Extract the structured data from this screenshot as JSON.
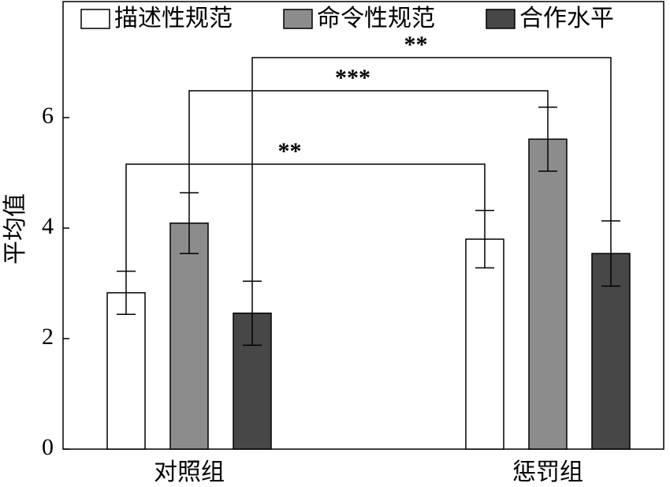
{
  "chart_data": {
    "type": "bar",
    "ylabel": "平均值",
    "categories": [
      "对照组",
      "惩罚组"
    ],
    "series": [
      {
        "name": "描述性规范",
        "color": "#ffffff",
        "values": [
          2.83,
          3.8
        ],
        "errors": [
          0.39,
          0.52
        ]
      },
      {
        "name": "命令性规范",
        "color": "#8c8c8c",
        "values": [
          4.09,
          5.61
        ],
        "errors": [
          0.55,
          0.58
        ]
      },
      {
        "name": "合作水平",
        "color": "#474747",
        "values": [
          2.46,
          3.54
        ],
        "errors": [
          0.58,
          0.59
        ]
      }
    ],
    "significance": [
      "**",
      "***",
      "**"
    ],
    "ylim": [
      0,
      8.1
    ],
    "yticks": [
      0,
      2,
      4,
      6
    ],
    "grid": false
  }
}
